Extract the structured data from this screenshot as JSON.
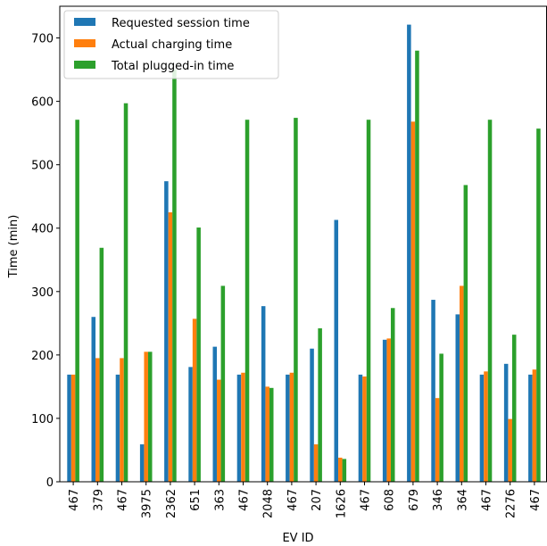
{
  "chart_data": {
    "type": "bar",
    "title": "",
    "xlabel": "EV ID",
    "ylabel": "Time (min)",
    "ylim": [
      0,
      750
    ],
    "yticks": [
      0,
      100,
      200,
      300,
      400,
      500,
      600,
      700
    ],
    "legend_position": "top-left",
    "categories": [
      "467",
      "379",
      "467",
      "3975",
      "2362",
      "651",
      "363",
      "467",
      "2048",
      "467",
      "207",
      "1626",
      "467",
      "608",
      "679",
      "346",
      "364",
      "467",
      "2276",
      "467"
    ],
    "series": [
      {
        "name": "Requested session time",
        "color": "#1f77b4",
        "values": [
          169,
          260,
          169,
          59,
          474,
          181,
          213,
          169,
          277,
          169,
          210,
          413,
          169,
          224,
          721,
          287,
          264,
          169,
          186,
          169
        ]
      },
      {
        "name": "Actual charging time",
        "color": "#ff7f0e",
        "values": [
          169,
          195,
          195,
          205,
          425,
          257,
          161,
          172,
          150,
          172,
          59,
          38,
          166,
          226,
          568,
          132,
          309,
          174,
          99,
          177
        ]
      },
      {
        "name": "Total plugged-in time",
        "color": "#2ca02c",
        "values": [
          571,
          369,
          597,
          205,
          650,
          401,
          309,
          571,
          148,
          574,
          242,
          36,
          571,
          274,
          680,
          202,
          468,
          571,
          232,
          557
        ]
      }
    ]
  }
}
